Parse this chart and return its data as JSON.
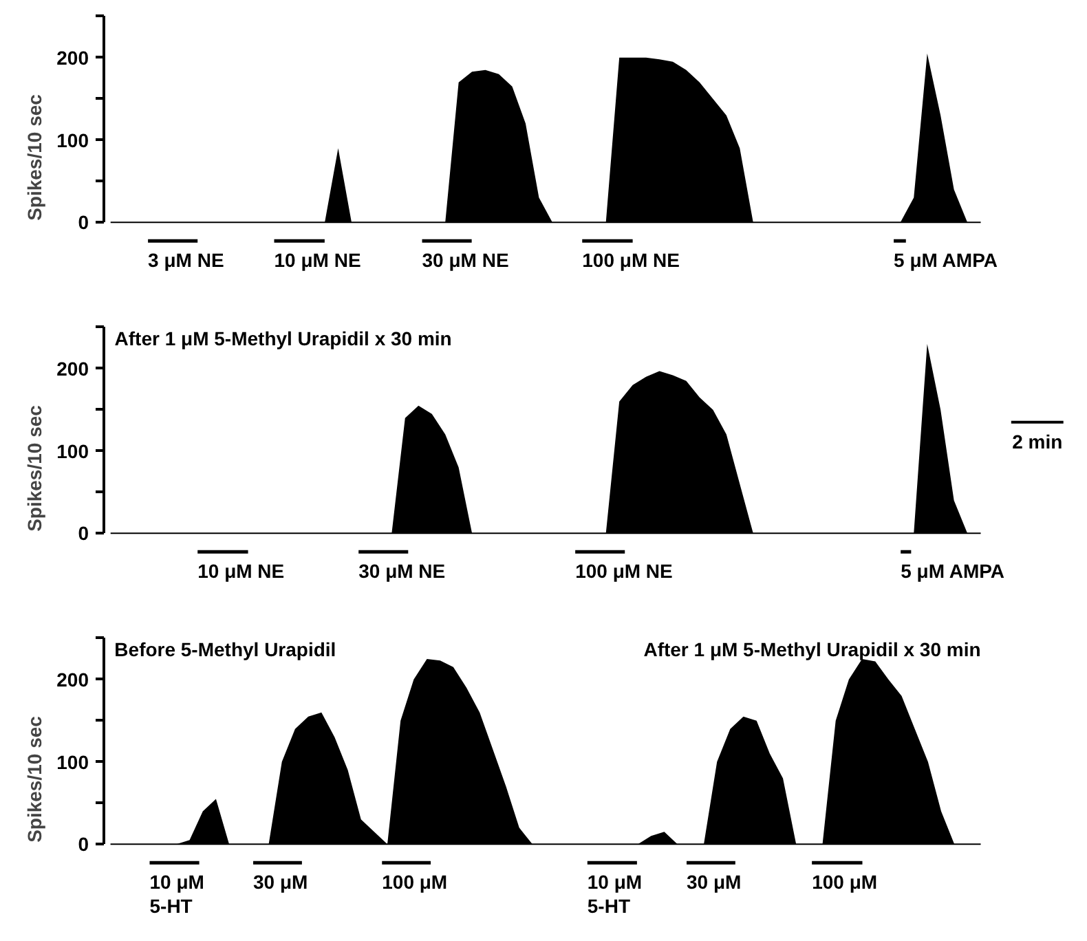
{
  "chart_data": [
    {
      "type": "area",
      "ylabel": "Spikes/10 sec",
      "ylim": [
        0,
        250
      ],
      "yticks": [
        0,
        {
          "value": 50,
          "label": null
        },
        100,
        {
          "value": 150,
          "label": null
        },
        200,
        {
          "value": 250,
          "label": null
        }
      ],
      "tick_labels": "y",
      "annotations": [
        "3 μM NE",
        "10 μM NE",
        "30 μM NE",
        "100 μM NE",
        "5 μM AMPA"
      ],
      "categories": [
        null,
        null,
        null,
        null,
        null,
        null,
        null,
        null,
        null,
        null,
        null,
        null,
        null,
        null,
        null,
        null,
        null,
        null,
        null,
        null,
        null,
        null,
        null,
        null,
        null,
        null,
        null,
        null,
        null,
        null,
        null,
        null,
        null,
        null,
        null,
        null,
        null,
        null,
        null,
        null,
        null,
        null,
        null,
        null,
        null,
        null,
        null,
        null,
        null,
        null,
        null,
        null,
        null,
        null,
        null,
        null,
        null,
        null,
        null,
        null,
        null,
        null,
        null,
        null,
        null,
        null
      ],
      "series": [
        {
          "color": "#000000",
          "values": [
            0,
            0,
            0,
            0,
            0,
            0,
            0,
            0,
            0,
            0,
            0,
            0,
            0,
            0,
            0,
            0,
            0,
            90,
            0,
            0,
            0,
            0,
            0,
            0,
            0,
            0,
            170,
            183,
            185,
            180,
            165,
            120,
            30,
            0,
            0,
            0,
            0,
            0,
            200,
            200,
            200,
            198,
            195,
            185,
            170,
            150,
            130,
            90,
            0,
            0,
            0,
            0,
            0,
            0,
            0,
            0,
            0,
            0,
            0,
            0,
            30,
            205,
            130,
            40,
            0,
            0
          ]
        }
      ]
    },
    {
      "type": "area",
      "title": "After 1 μM 5-Methyl Urapidil x 30 min",
      "ylabel": "Spikes/10 sec",
      "ylim": [
        0,
        250
      ],
      "yticks": [
        0,
        {
          "value": 50,
          "label": null
        },
        100,
        {
          "value": 150,
          "label": null
        },
        200,
        {
          "value": 250,
          "label": null
        }
      ],
      "tick_labels": "y",
      "annotations": [
        "10 μM NE",
        "30 μM NE",
        "100 μM NE",
        "5 μM AMPA",
        "2 min"
      ],
      "categories": [
        null,
        null,
        null,
        null,
        null,
        null,
        null,
        null,
        null,
        null,
        null,
        null,
        null,
        null,
        null,
        null,
        null,
        null,
        null,
        null,
        null,
        null,
        null,
        null,
        null,
        null,
        null,
        null,
        null,
        null,
        null,
        null,
        null,
        null,
        null,
        null,
        null,
        null,
        null,
        null,
        null,
        null,
        null,
        null,
        null,
        null,
        null,
        null,
        null,
        null,
        null,
        null,
        null,
        null,
        null,
        null,
        null,
        null,
        null,
        null,
        null,
        null,
        null,
        null,
        null,
        null
      ],
      "series": [
        {
          "color": "#000000",
          "values": [
            0,
            0,
            0,
            0,
            0,
            0,
            0,
            0,
            0,
            0,
            0,
            0,
            0,
            0,
            0,
            0,
            0,
            0,
            0,
            0,
            0,
            0,
            140,
            155,
            145,
            120,
            80,
            0,
            0,
            0,
            0,
            0,
            0,
            0,
            0,
            0,
            0,
            0,
            160,
            180,
            190,
            197,
            192,
            185,
            165,
            150,
            120,
            60,
            0,
            0,
            0,
            0,
            0,
            0,
            0,
            0,
            0,
            0,
            0,
            0,
            0,
            230,
            150,
            40,
            0,
            0
          ]
        }
      ]
    },
    {
      "type": "area",
      "title": "Before 5-Methyl Urapidil",
      "subtitle": "After 1 μM 5-Methyl Urapidil x 30 min",
      "ylabel": "Spikes/10 sec",
      "ylim": [
        0,
        250
      ],
      "yticks": [
        0,
        {
          "value": 50,
          "label": null
        },
        100,
        {
          "value": 150,
          "label": null
        },
        200,
        {
          "value": 250,
          "label": null
        }
      ],
      "tick_labels": "y",
      "annotations": [
        "10 μM\n5-HT",
        "30 μM",
        "100 μM",
        "10 μM\n5-HT",
        "30 μM",
        "100 μM"
      ],
      "categories": [
        null,
        null,
        null,
        null,
        null,
        null,
        null,
        null,
        null,
        null,
        null,
        null,
        null,
        null,
        null,
        null,
        null,
        null,
        null,
        null,
        null,
        null,
        null,
        null,
        null,
        null,
        null,
        null,
        null,
        null,
        null,
        null,
        null,
        null,
        null,
        null,
        null,
        null,
        null,
        null,
        null,
        null,
        null,
        null,
        null,
        null,
        null,
        null,
        null,
        null,
        null,
        null,
        null,
        null,
        null,
        null,
        null,
        null,
        null,
        null,
        null,
        null,
        null,
        null,
        null,
        null,
        null
      ],
      "series": [
        {
          "color": "#000000",
          "values": [
            0,
            0,
            0,
            0,
            0,
            0,
            5,
            40,
            55,
            0,
            0,
            0,
            0,
            100,
            140,
            155,
            160,
            130,
            90,
            30,
            15,
            0,
            150,
            200,
            225,
            223,
            215,
            190,
            160,
            115,
            70,
            20,
            0,
            0,
            0,
            0,
            0,
            0,
            0,
            0,
            0,
            10,
            15,
            0,
            0,
            0,
            100,
            140,
            155,
            150,
            110,
            80,
            0,
            0,
            0,
            150,
            200,
            225,
            222,
            200,
            180,
            140,
            100,
            40,
            0,
            0,
            0
          ]
        }
      ]
    }
  ]
}
